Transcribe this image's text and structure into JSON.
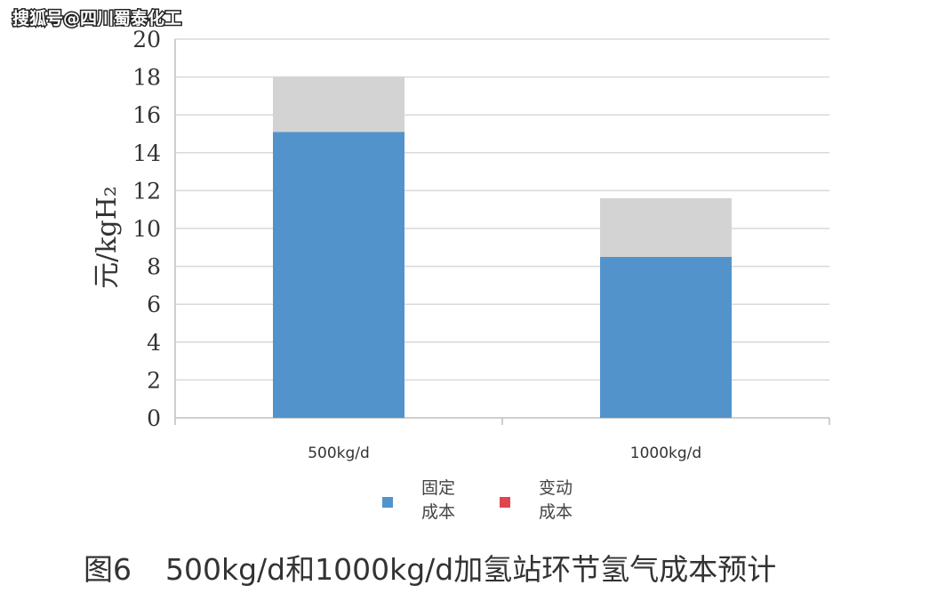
{
  "watermark": "搜狐号@四川蜀泰化工",
  "caption": {
    "figure_no": "图6",
    "title": "500kg/d和1000kg/d加氢站环节氢气成本预计"
  },
  "colors": {
    "fixed": "#5293cc",
    "variable_bar": "#d3d3d3",
    "variable_legend": "#e0454d",
    "grid": "#d9d9d9"
  },
  "chart_data": {
    "type": "bar",
    "stacked": true,
    "ylabel": "元/kgH₂",
    "ylim": [
      0,
      20
    ],
    "yticks": [
      "0",
      "2",
      "4",
      "6",
      "8",
      "10",
      "12",
      "14",
      "16",
      "18",
      "20"
    ],
    "categories": [
      "500kg/d",
      "1000kg/d"
    ],
    "series": [
      {
        "name": "固定成本",
        "legend_lines": [
          "固定",
          "成本"
        ],
        "values": [
          15.1,
          8.5
        ]
      },
      {
        "name": "变动成本",
        "legend_lines": [
          "变动",
          "成本"
        ],
        "values": [
          2.9,
          3.1
        ]
      }
    ],
    "grid": true,
    "legend": "bottom"
  }
}
